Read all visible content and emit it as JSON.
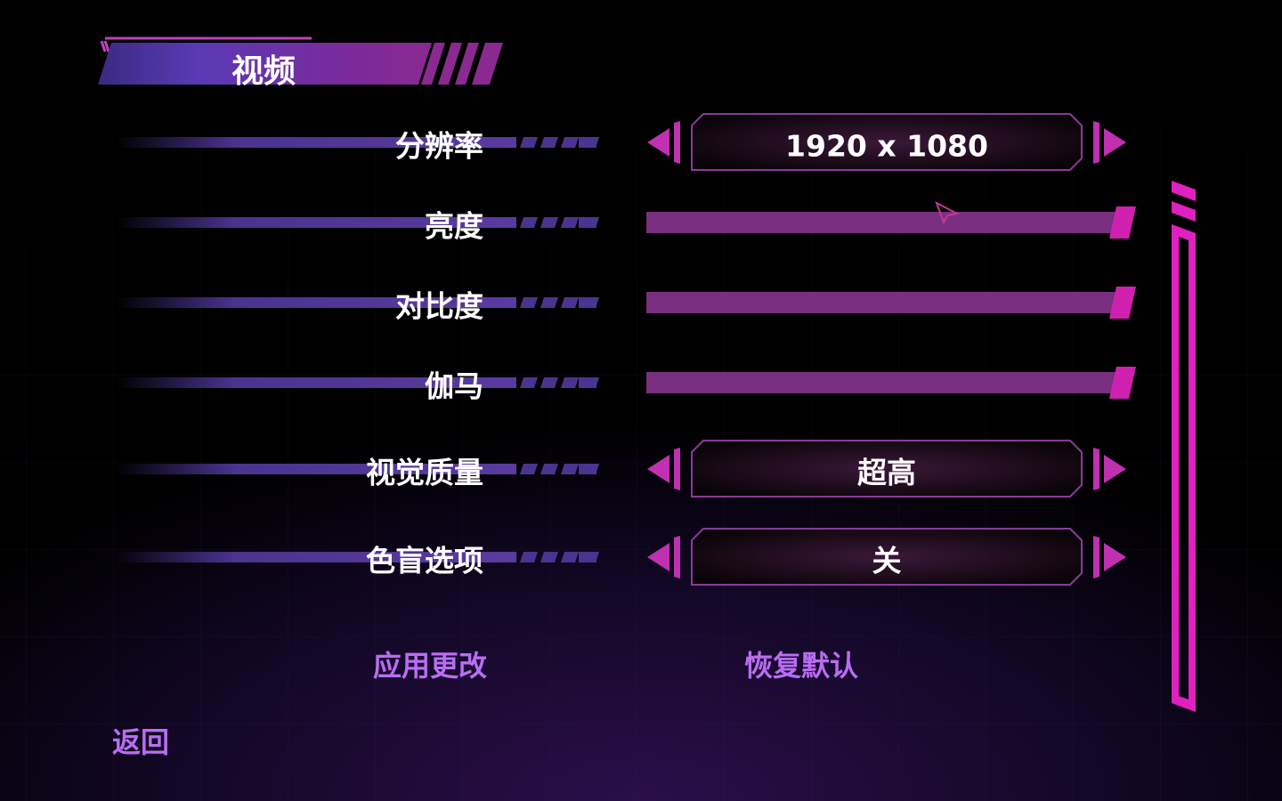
{
  "header": {
    "title": "视频"
  },
  "settings": [
    {
      "label": "分辨率",
      "control": "selector",
      "value": "1920 x 1080"
    },
    {
      "label": "亮度",
      "control": "slider"
    },
    {
      "label": "对比度",
      "control": "slider"
    },
    {
      "label": "伽马",
      "control": "slider"
    },
    {
      "label": "视觉质量",
      "control": "selector",
      "value": "超高"
    },
    {
      "label": "色盲选项",
      "control": "selector",
      "value": "关"
    }
  ],
  "actions": {
    "apply": "应用更改",
    "reset": "恢复默认"
  },
  "footer": {
    "back": "返回"
  }
}
